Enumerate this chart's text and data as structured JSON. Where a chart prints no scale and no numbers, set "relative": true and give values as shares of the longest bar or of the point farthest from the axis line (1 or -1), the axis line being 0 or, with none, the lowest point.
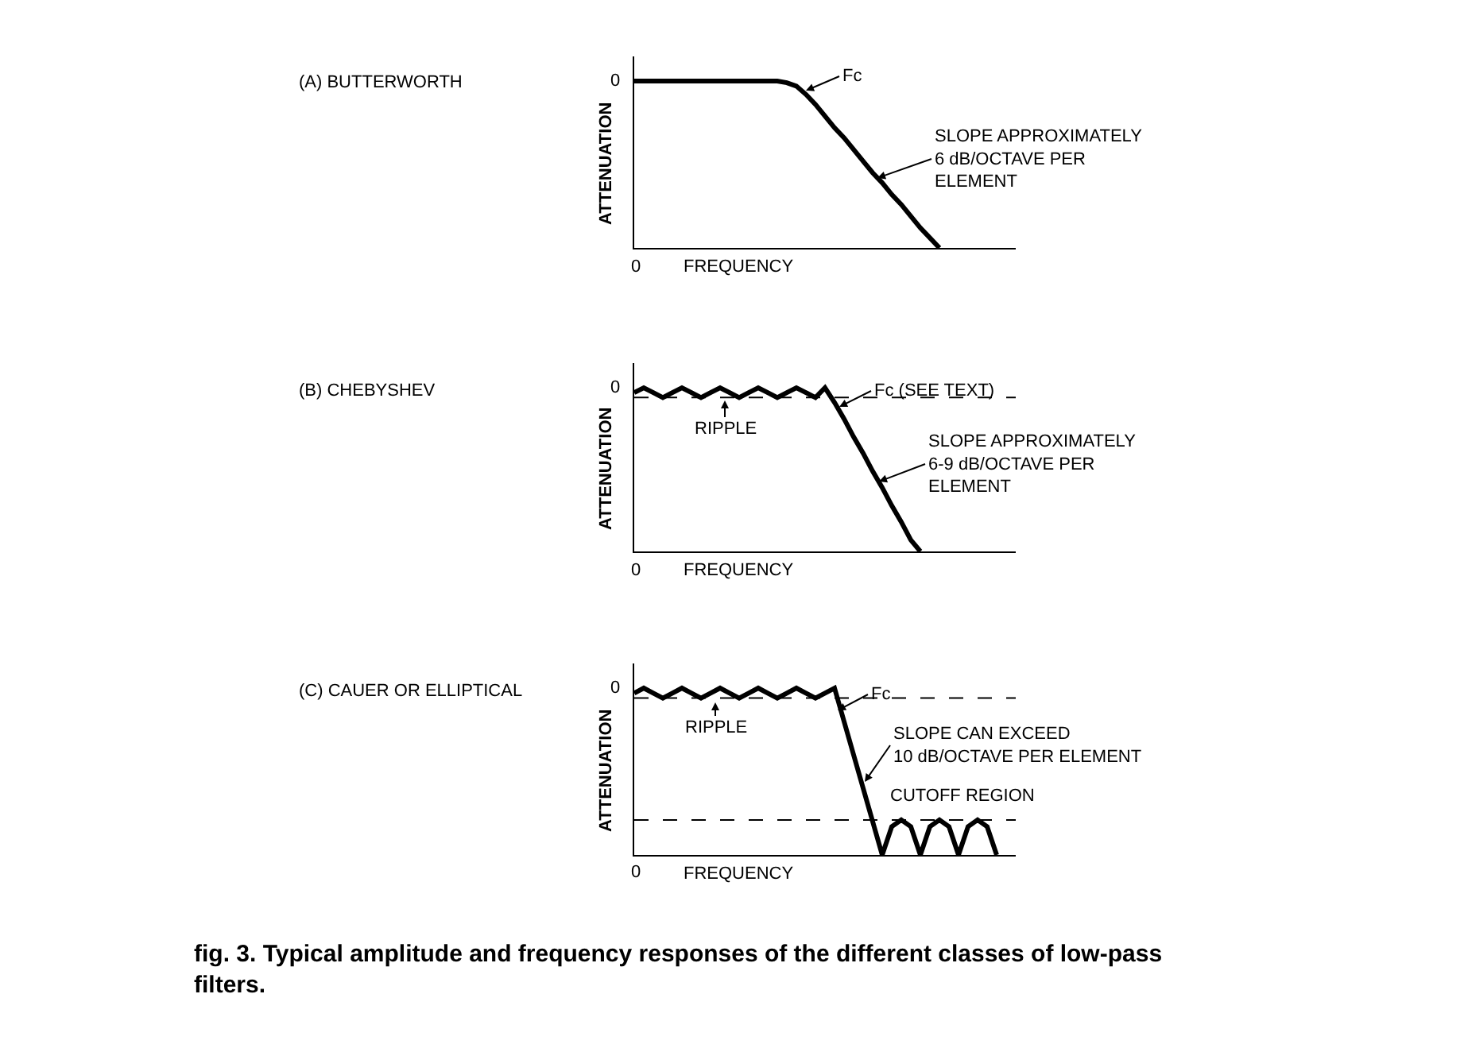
{
  "chart_data": [
    {
      "type": "line",
      "relative": true,
      "xlabel": "FREQUENCY",
      "ylabel": "ATTENUATION",
      "categories": [
        null,
        null,
        null,
        null,
        null,
        null,
        null,
        null,
        null,
        null,
        null,
        null,
        null,
        null,
        null,
        null,
        null,
        null,
        null,
        null,
        null,
        null,
        null,
        null,
        null,
        null,
        null,
        null,
        null,
        null,
        null,
        null,
        null,
        null,
        null,
        null,
        null,
        null,
        null,
        null,
        null
      ],
      "series": [
        {
          "color": "#000000",
          "values": [
            1,
            1,
            1,
            1,
            1,
            1,
            1,
            1,
            1,
            1,
            1,
            1,
            1,
            1,
            1,
            1,
            0.99,
            0.97,
            0.92,
            0.86,
            0.79,
            0.72,
            0.66,
            0.59,
            0.52,
            0.45,
            0.39,
            0.32,
            0.26,
            0.19,
            0.12,
            0.06,
            0,
            null,
            null,
            null,
            null,
            null,
            null,
            null,
            null
          ]
        }
      ],
      "annotations": [
        "(A) BUTTERWORTH",
        "0",
        "0",
        "Fc",
        "SLOPE APPROXIMATELY\n6 dB/OCTAVE PER\nELEMENT"
      ]
    },
    {
      "type": "line",
      "relative": true,
      "xlabel": "FREQUENCY",
      "ylabel": "ATTENUATION",
      "categories": [
        null,
        null,
        null,
        null,
        null,
        null,
        null,
        null,
        null,
        null,
        null,
        null,
        null,
        null,
        null,
        null,
        null,
        null,
        null,
        null,
        null,
        null,
        null,
        null,
        null,
        null,
        null,
        null,
        null,
        null,
        null,
        null,
        null,
        null,
        null,
        null,
        null,
        null,
        null,
        null,
        null
      ],
      "series": [
        {
          "color": "#000000",
          "values": [
            0.97,
            1,
            0.97,
            0.94,
            0.97,
            1,
            0.97,
            0.94,
            0.97,
            1,
            0.97,
            0.94,
            0.97,
            1,
            0.97,
            0.94,
            0.97,
            1,
            0.97,
            0.94,
            1,
            0.91,
            0.81,
            0.7,
            0.6,
            0.49,
            0.39,
            0.28,
            0.18,
            0.07,
            0,
            null,
            null,
            null,
            null,
            null,
            null,
            null,
            null,
            null,
            null
          ]
        }
      ],
      "ref_lines": [
        {
          "axis": "y",
          "value": 0.94,
          "line_style": "dashed"
        }
      ],
      "annotations": [
        "(B) CHEBYSHEV",
        "0",
        "0",
        "RIPPLE",
        "Fc (SEE TEXT)",
        "SLOPE APPROXIMATELY\n6-9 dB/OCTAVE PER\nELEMENT"
      ]
    },
    {
      "type": "line",
      "relative": true,
      "xlabel": "FREQUENCY",
      "ylabel": "ATTENUATION",
      "categories": [
        null,
        null,
        null,
        null,
        null,
        null,
        null,
        null,
        null,
        null,
        null,
        null,
        null,
        null,
        null,
        null,
        null,
        null,
        null,
        null,
        null,
        null,
        null,
        null,
        null,
        null,
        null,
        null,
        null,
        null,
        null,
        null,
        null,
        null,
        null,
        null,
        null,
        null,
        null,
        null,
        null
      ],
      "series": [
        {
          "color": "#000000",
          "values": [
            0.97,
            1,
            0.97,
            0.94,
            0.97,
            1,
            0.97,
            0.94,
            0.97,
            1,
            0.97,
            0.94,
            0.97,
            1,
            0.97,
            0.94,
            0.97,
            1,
            0.97,
            0.94,
            0.97,
            1,
            0.8,
            0.6,
            0.4,
            0.2,
            0,
            0.17,
            0.21,
            0.17,
            0,
            0.17,
            0.21,
            0.17,
            0,
            0.17,
            0.21,
            0.17,
            0,
            null,
            null
          ]
        }
      ],
      "ref_lines": [
        {
          "axis": "y",
          "value": 0.94,
          "line_style": "dashed"
        },
        {
          "axis": "y",
          "value": 0.21,
          "line_style": "dashed"
        }
      ],
      "annotations": [
        "(C) CAUER OR ELLIPTICAL",
        "0",
        "0",
        "RIPPLE",
        "Fc",
        "SLOPE CAN EXCEED\n10 dB/OCTAVE PER ELEMENT",
        "CUTOFF REGION",
        "fig. 3. Typical amplitude and frequency responses of the different classes of low-pass\nfilters."
      ]
    }
  ]
}
